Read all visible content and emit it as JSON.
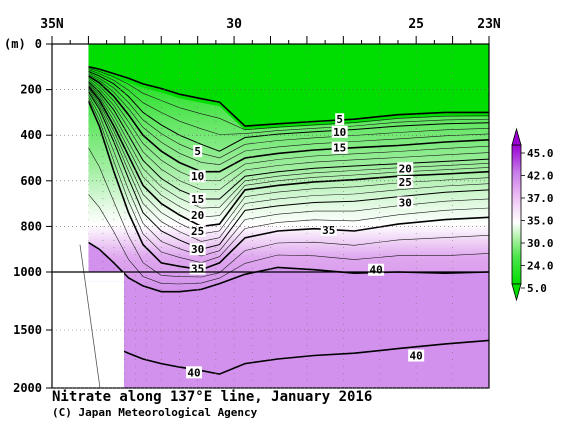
{
  "chart_data": {
    "type": "contour-section",
    "title": "Nitrate along 137°E line, January 2016",
    "credit": "(C) Japan Meteorological Agency",
    "ylabel": "(m)",
    "x_axis": {
      "tick_labels": [
        "35N",
        "30",
        "25",
        "23N"
      ],
      "tick_values": [
        35,
        30,
        25,
        23
      ],
      "range": [
        35,
        23
      ]
    },
    "y_axis": {
      "tick_labels": [
        "0",
        "200",
        "400",
        "600",
        "800",
        "1000",
        "1500",
        "2000"
      ],
      "tick_values": [
        0,
        200,
        400,
        600,
        800,
        1000,
        1500,
        2000
      ],
      "upper_range": [
        0,
        1000
      ],
      "lower_range": [
        1000,
        2000
      ]
    },
    "colorbar": {
      "labels": [
        "45.0",
        "42.0",
        "37.0",
        "35.0",
        "30.0",
        "24.0",
        "5.0"
      ],
      "colors": [
        "#9b00d3",
        "#c77ee8",
        "#e4a9f0",
        "#f4d8f8",
        "#ffffff",
        "#a8f0a0",
        "#4ee64e",
        "#00dd00"
      ]
    },
    "contours": [
      {
        "label": "5",
        "value": 5,
        "depths": [
          100,
          110,
          130,
          150,
          175,
          195,
          220,
          240,
          255,
          360,
          350,
          340,
          330,
          310,
          300,
          300
        ]
      },
      {
        "label": "10",
        "value": 10,
        "depths": [
          120,
          140,
          175,
          230,
          300,
          355,
          400,
          440,
          470,
          410,
          395,
          385,
          375,
          360,
          350,
          345
        ]
      },
      {
        "label": "15",
        "value": 15,
        "depths": [
          140,
          170,
          230,
          310,
          400,
          470,
          520,
          560,
          560,
          500,
          480,
          465,
          455,
          445,
          430,
          420
        ]
      },
      {
        "label": "20",
        "value": 20,
        "depths": [
          165,
          210,
          290,
          400,
          510,
          590,
          640,
          680,
          680,
          580,
          560,
          545,
          535,
          525,
          515,
          505
        ]
      },
      {
        "label": "25",
        "value": 25,
        "depths": [
          185,
          245,
          360,
          490,
          620,
          700,
          750,
          800,
          790,
          640,
          620,
          605,
          595,
          580,
          570,
          560
        ]
      },
      {
        "label": "30",
        "value": 30,
        "depths": [
          210,
          285,
          430,
          590,
          740,
          820,
          860,
          900,
          880,
          730,
          710,
          695,
          690,
          670,
          650,
          640
        ]
      },
      {
        "label": "35",
        "value": 35,
        "depths": [
          250,
          360,
          560,
          740,
          880,
          960,
          975,
          990,
          960,
          850,
          820,
          810,
          820,
          790,
          770,
          760
        ]
      },
      {
        "label": "40",
        "value": 40,
        "depths": [
          870,
          900,
          960,
          1050,
          1120,
          1170,
          1170,
          1150,
          1100,
          1020,
          980,
          990,
          1010,
          1000,
          1010,
          1000
        ]
      },
      {
        "label": "40",
        "value": 40,
        "depths": [
          1600,
          1600,
          1650,
          1700,
          1750,
          1790,
          1820,
          1850,
          1880,
          1790,
          1750,
          1720,
          1700,
          1660,
          1620,
          1590
        ]
      }
    ],
    "contour_x": [
      34.0,
      33.7,
      33.3,
      32.9,
      32.5,
      32.0,
      31.5,
      30.9,
      30.4,
      29.7,
      28.8,
      27.8,
      26.7,
      25.5,
      24.2,
      23.0
    ],
    "stations_lat": [
      34.0,
      33.6,
      33.3,
      33.0,
      32.7,
      32.4,
      32.0,
      31.5,
      31.0,
      30.5,
      30.0,
      29.5,
      29.0,
      28.0,
      27.0,
      26.0,
      25.0,
      24.0,
      23.0
    ],
    "inline_labels": [
      {
        "text": "5",
        "lat": 31.0,
        "depth": 470
      },
      {
        "text": "10",
        "lat": 31.0,
        "depth": 580
      },
      {
        "text": "15",
        "lat": 31.0,
        "depth": 680
      },
      {
        "text": "20",
        "lat": 31.0,
        "depth": 750
      },
      {
        "text": "25",
        "lat": 31.0,
        "depth": 820
      },
      {
        "text": "30",
        "lat": 31.0,
        "depth": 900
      },
      {
        "text": "35",
        "lat": 31.0,
        "depth": 985
      },
      {
        "text": "5",
        "lat": 27.1,
        "depth": 330
      },
      {
        "text": "10",
        "lat": 27.1,
        "depth": 385
      },
      {
        "text": "15",
        "lat": 27.1,
        "depth": 455
      },
      {
        "text": "20",
        "lat": 25.3,
        "depth": 545
      },
      {
        "text": "25",
        "lat": 25.3,
        "depth": 605
      },
      {
        "text": "30",
        "lat": 25.3,
        "depth": 695
      },
      {
        "text": "35",
        "lat": 27.4,
        "depth": 815
      },
      {
        "text": "40",
        "lat": 26.1,
        "depth": 990
      },
      {
        "text": "40",
        "lat": 25.0,
        "depth": 1720
      },
      {
        "text": "40",
        "lat": 31.1,
        "depth": 1865
      }
    ]
  }
}
